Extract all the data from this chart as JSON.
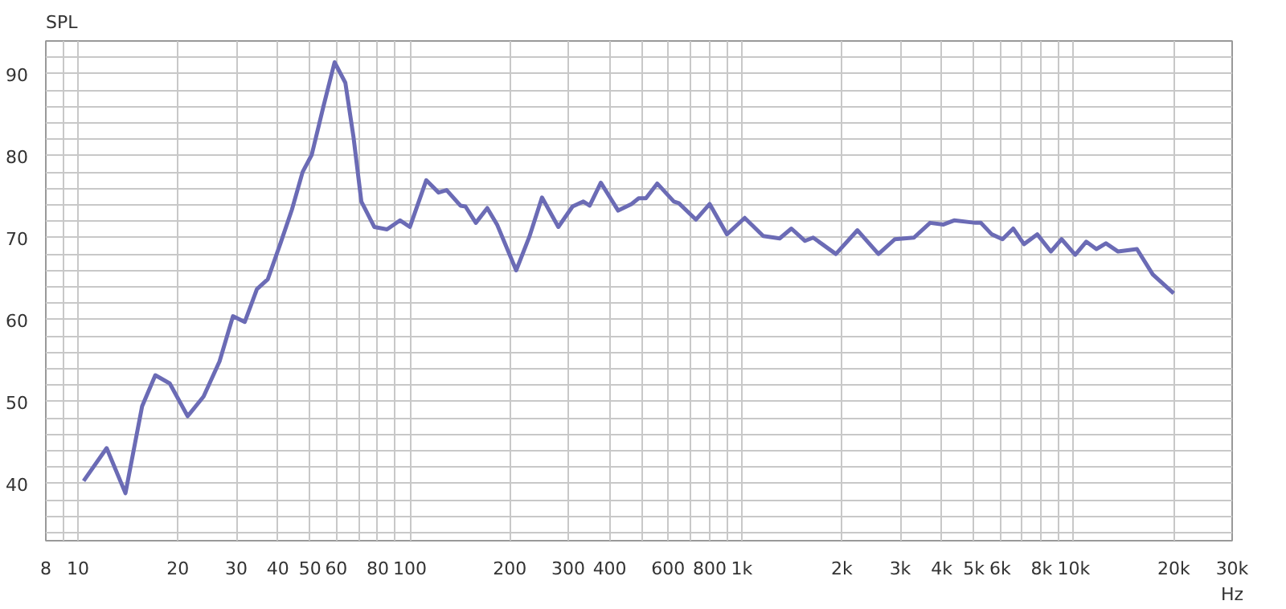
{
  "chart_data": {
    "type": "line",
    "ylabel": "SPL",
    "log": "x",
    "grid": true,
    "xlim": [
      8,
      30000
    ],
    "ylim": [
      33,
      94
    ],
    "xticks": [
      8,
      {
        "value": 9,
        "label": null
      },
      10,
      20,
      30,
      40,
      50,
      60,
      {
        "value": 70,
        "label": null
      },
      80,
      {
        "value": 90,
        "label": null
      },
      100,
      200,
      300,
      400,
      {
        "value": 500,
        "label": null
      },
      600,
      {
        "value": 700,
        "label": null
      },
      800,
      {
        "value": 900,
        "label": null
      },
      {
        "value": 1000,
        "label": "1k"
      },
      {
        "value": 2000,
        "label": "2k"
      },
      {
        "value": 3000,
        "label": "3k"
      },
      {
        "value": 4000,
        "label": "4k"
      },
      {
        "value": 5000,
        "label": "5k"
      },
      {
        "value": 6000,
        "label": "6k"
      },
      {
        "value": 7000,
        "label": null
      },
      {
        "value": 8000,
        "label": "8k"
      },
      {
        "value": 9000,
        "label": null
      },
      {
        "value": 10000,
        "label": "10k"
      },
      {
        "value": 20000,
        "label": "20k"
      },
      {
        "value": 30000,
        "label": "30k"
      }
    ],
    "xlabel": "Hz",
    "yticks": [
      {
        "value": 34,
        "label": null
      },
      {
        "value": 36,
        "label": null
      },
      {
        "value": 38,
        "label": null
      },
      40,
      {
        "value": 42,
        "label": null
      },
      {
        "value": 44,
        "label": null
      },
      {
        "value": 46,
        "label": null
      },
      {
        "value": 48,
        "label": null
      },
      50,
      {
        "value": 52,
        "label": null
      },
      {
        "value": 54,
        "label": null
      },
      {
        "value": 56,
        "label": null
      },
      {
        "value": 58,
        "label": null
      },
      60,
      {
        "value": 62,
        "label": null
      },
      {
        "value": 64,
        "label": null
      },
      {
        "value": 66,
        "label": null
      },
      {
        "value": 68,
        "label": null
      },
      70,
      {
        "value": 72,
        "label": null
      },
      {
        "value": 74,
        "label": null
      },
      {
        "value": 76,
        "label": null
      },
      {
        "value": 78,
        "label": null
      },
      80,
      {
        "value": 82,
        "label": null
      },
      {
        "value": 84,
        "label": null
      },
      {
        "value": 86,
        "label": null
      },
      {
        "value": 88,
        "label": null
      },
      90,
      {
        "value": 92,
        "label": null
      }
    ],
    "x": [
      10.4,
      12.2,
      13.9,
      15.6,
      17.1,
      18.9,
      21.4,
      23.9,
      26.7,
      29.3,
      31.8,
      34.6,
      37.3,
      40.9,
      44.1,
      47.5,
      50.6,
      54.8,
      59.3,
      63.9,
      67.6,
      71.4,
      78.1,
      85.3,
      93.4,
      100,
      112,
      122,
      129,
      142,
      147,
      158,
      171,
      183,
      209,
      229,
      250,
      280,
      309,
      333,
      348,
      376,
      424,
      465,
      489,
      514,
      556,
      624,
      646,
      727,
      800,
      902,
      1020,
      1160,
      1300,
      1410,
      1550,
      1640,
      1920,
      2230,
      2580,
      2890,
      3300,
      3690,
      4050,
      4360,
      5060,
      5250,
      5660,
      6100,
      6570,
      7080,
      7760,
      8530,
      9190,
      10100,
      10900,
      11700,
      12500,
      13600,
      15500,
      17300,
      20000
    ],
    "series": [
      {
        "color": "#6b6bb5",
        "line_style": "solid",
        "values": [
          40.3,
          44.3,
          38.8,
          49.4,
          53.2,
          52.2,
          48.2,
          50.6,
          54.9,
          60.4,
          59.7,
          63.7,
          64.9,
          69.5,
          73.4,
          78.0,
          80.1,
          85.9,
          91.4,
          88.9,
          82.3,
          74.4,
          71.3,
          71.0,
          72.1,
          71.3,
          77.0,
          75.5,
          75.8,
          73.9,
          73.8,
          71.8,
          73.6,
          71.6,
          66.0,
          70.1,
          74.9,
          71.3,
          73.8,
          74.4,
          73.9,
          76.7,
          73.3,
          74.1,
          74.8,
          74.8,
          76.6,
          74.4,
          74.2,
          72.2,
          74.1,
          70.4,
          72.4,
          70.2,
          69.9,
          71.1,
          69.6,
          70.0,
          68.0,
          70.9,
          68.0,
          69.8,
          70.0,
          71.8,
          71.6,
          72.1,
          71.8,
          71.8,
          70.4,
          69.8,
          71.1,
          69.2,
          70.4,
          68.3,
          69.8,
          67.9,
          69.5,
          68.6,
          69.3,
          68.3,
          68.6,
          65.5,
          63.2
        ]
      }
    ]
  }
}
